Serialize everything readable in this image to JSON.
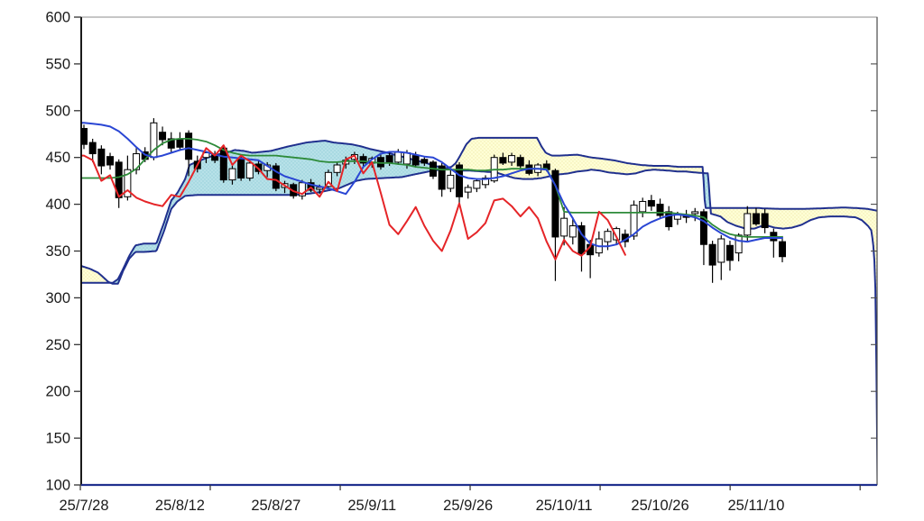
{
  "chart_data": {
    "type": "candlestick",
    "subtype": "ichimoku-cloud",
    "title": "",
    "legend": [],
    "grid": "off",
    "y_axis": {
      "min": 100,
      "max": 600,
      "tick_step": 50,
      "tick_labels": [
        "100",
        "150",
        "200",
        "250",
        "300",
        "350",
        "400",
        "450",
        "500",
        "550",
        "600"
      ]
    },
    "x_axis": {
      "labels": [
        {
          "bar": 0,
          "text": "25/7/28"
        },
        {
          "bar": 11,
          "text": "25/8/12"
        },
        {
          "bar": 22,
          "text": "25/8/27"
        },
        {
          "bar": 33,
          "text": "25/9/11"
        },
        {
          "bar": 44,
          "text": "25/9/26"
        },
        {
          "bar": 55,
          "text": "25/10/11"
        },
        {
          "bar": 66,
          "text": "25/10/26"
        },
        {
          "bar": 77,
          "text": "25/11/10"
        }
      ],
      "boundary_tick_bars": [
        -0.41,
        14.47,
        29.36,
        44.24,
        59.13,
        74.02,
        88.91
      ]
    },
    "candles": [
      [
        481,
        485,
        459,
        464
      ],
      [
        466,
        470,
        445,
        454
      ],
      [
        459,
        463,
        432,
        441
      ],
      [
        451,
        455,
        437,
        442
      ],
      [
        445,
        448,
        396,
        407
      ],
      [
        408,
        452,
        404,
        437
      ],
      [
        437,
        460,
        432,
        454
      ],
      [
        456,
        461,
        445,
        448
      ],
      [
        450,
        492,
        447,
        487
      ],
      [
        477,
        483,
        463,
        469
      ],
      [
        470,
        477,
        455,
        460
      ],
      [
        469,
        477,
        457,
        461
      ],
      [
        476,
        479,
        430,
        448
      ],
      [
        446,
        452,
        434,
        438
      ],
      [
        450,
        457,
        444,
        455
      ],
      [
        453,
        457,
        444,
        447
      ],
      [
        460,
        463,
        423,
        426
      ],
      [
        426,
        441,
        421,
        438
      ],
      [
        448,
        452,
        425,
        428
      ],
      [
        428,
        446,
        425,
        444
      ],
      [
        443,
        447,
        432,
        435
      ],
      [
        436,
        445,
        429,
        442
      ],
      [
        441,
        444,
        414,
        417
      ],
      [
        418,
        425,
        412,
        422
      ],
      [
        421,
        423,
        406,
        409
      ],
      [
        409,
        426,
        405,
        423
      ],
      [
        423,
        427,
        413,
        415
      ],
      [
        416,
        421,
        411,
        418
      ],
      [
        419,
        437,
        416,
        434
      ],
      [
        434,
        445,
        430,
        442
      ],
      [
        443,
        451,
        438,
        447
      ],
      [
        448,
        456,
        443,
        453
      ],
      [
        451,
        454,
        441,
        444
      ],
      [
        444,
        451,
        439,
        449
      ],
      [
        450,
        453,
        437,
        440
      ],
      [
        452,
        456,
        441,
        444
      ],
      [
        445,
        459,
        442,
        456
      ],
      [
        443,
        458,
        438,
        455
      ],
      [
        452,
        456,
        439,
        442
      ],
      [
        448,
        451,
        441,
        444
      ],
      [
        445,
        447,
        427,
        430
      ],
      [
        441,
        444,
        408,
        416
      ],
      [
        417,
        437,
        413,
        431
      ],
      [
        442,
        445,
        400,
        408
      ],
      [
        413,
        421,
        406,
        418
      ],
      [
        417,
        427,
        413,
        425
      ],
      [
        421,
        431,
        417,
        428
      ],
      [
        425,
        453,
        423,
        450
      ],
      [
        450,
        455,
        442,
        444
      ],
      [
        445,
        455,
        441,
        452
      ],
      [
        450,
        453,
        438,
        441
      ],
      [
        442,
        447,
        431,
        433
      ],
      [
        434,
        444,
        430,
        442
      ],
      [
        443,
        447,
        435,
        437
      ],
      [
        436,
        438,
        318,
        365
      ],
      [
        366,
        397,
        356,
        385
      ],
      [
        365,
        386,
        357,
        377
      ],
      [
        377,
        381,
        328,
        347
      ],
      [
        357,
        362,
        321,
        346
      ],
      [
        348,
        371,
        344,
        363
      ],
      [
        360,
        374,
        351,
        371
      ],
      [
        362,
        376,
        357,
        374
      ],
      [
        368,
        373,
        354,
        360
      ],
      [
        366,
        404,
        362,
        399
      ],
      [
        392,
        407,
        386,
        403
      ],
      [
        404,
        410,
        393,
        398
      ],
      [
        400,
        406,
        384,
        388
      ],
      [
        392,
        398,
        372,
        376
      ],
      [
        384,
        392,
        378,
        389
      ],
      [
        388,
        394,
        380,
        386
      ],
      [
        390,
        396,
        382,
        392
      ],
      [
        392,
        395,
        335,
        357
      ],
      [
        357,
        361,
        316,
        335
      ],
      [
        338,
        367,
        319,
        363
      ],
      [
        356,
        361,
        329,
        340
      ],
      [
        348,
        369,
        339,
        367
      ],
      [
        367,
        398,
        361,
        390
      ],
      [
        390,
        396,
        377,
        379
      ],
      [
        390,
        395,
        369,
        375
      ],
      [
        370,
        374,
        343,
        361
      ],
      [
        360,
        366,
        338,
        344
      ]
    ],
    "overlays": {
      "red_lagging_line": [
        452,
        447,
        425,
        431,
        408,
        415,
        407,
        403,
        400,
        398,
        410,
        408,
        424,
        442,
        460,
        452,
        463,
        442,
        452,
        446,
        438,
        427,
        426,
        420,
        414,
        411,
        418,
        408,
        424,
        414,
        448,
        452,
        433,
        445,
        412,
        378,
        368,
        382,
        397,
        377,
        361,
        350,
        372,
        401,
        363,
        370,
        380,
        404,
        406,
        398,
        387,
        397,
        385,
        360,
        341,
        362,
        350,
        345,
        355,
        392,
        383,
        365,
        346
      ],
      "blue_line": [
        487,
        486,
        485,
        483,
        478,
        470,
        461,
        453,
        450,
        452,
        455,
        458,
        460,
        458,
        456,
        453,
        451,
        450,
        449,
        448,
        447,
        441,
        435,
        430,
        427,
        424,
        421,
        419,
        417,
        414,
        411,
        424,
        440,
        448,
        454,
        456,
        456,
        455,
        453,
        451,
        450,
        445,
        438,
        431,
        428,
        427,
        427,
        428,
        430,
        433,
        436,
        438,
        438,
        437,
        420,
        400,
        385,
        368,
        358,
        355,
        355,
        357,
        362,
        368,
        376,
        381,
        385,
        388,
        389,
        388,
        386,
        382,
        375,
        369,
        364,
        361,
        360,
        362,
        364,
        364,
        364
      ],
      "green_line": [
        428,
        428,
        428,
        428,
        429,
        432,
        438,
        448,
        458,
        465,
        469,
        470,
        470,
        469,
        467,
        463,
        458,
        455,
        453,
        452,
        452,
        452,
        452,
        451,
        450,
        449,
        448,
        446,
        445,
        445,
        446,
        446,
        446,
        445,
        444,
        444,
        443,
        442,
        440,
        439,
        438,
        437,
        437,
        437,
        437,
        436,
        436,
        437,
        437,
        438,
        438,
        438,
        438,
        438,
        420,
        392,
        391,
        391,
        391,
        391,
        391,
        391,
        391,
        391,
        391,
        391,
        391,
        391,
        390,
        389,
        388,
        386,
        378,
        372,
        368,
        366,
        365,
        365,
        365,
        365,
        365
      ],
      "cloud_span_a": [
        [
          -0.3,
          316
        ],
        [
          2.1,
          316
        ],
        [
          3.3,
          316
        ],
        [
          3.9,
          320
        ],
        [
          4.5,
          331
        ],
        [
          5.2,
          345
        ],
        [
          5.9,
          356
        ],
        [
          6.9,
          358
        ],
        [
          8.3,
          358
        ],
        [
          9.2,
          381
        ],
        [
          10,
          404
        ],
        [
          10.7,
          412
        ],
        [
          11.6,
          427
        ],
        [
          12.1,
          442
        ],
        [
          13.1,
          446
        ],
        [
          14.2,
          450
        ],
        [
          15.2,
          453
        ],
        [
          16.3,
          455
        ],
        [
          17.3,
          458
        ],
        [
          18.3,
          457
        ],
        [
          19.3,
          455
        ],
        [
          21.4,
          457
        ],
        [
          23.5,
          462
        ],
        [
          25.5,
          466
        ],
        [
          26.5,
          467
        ],
        [
          27.6,
          468
        ],
        [
          28.6,
          466
        ],
        [
          29.7,
          465
        ],
        [
          30.7,
          464
        ],
        [
          31.7,
          462
        ],
        [
          32.8,
          459
        ],
        [
          33.8,
          457
        ],
        [
          34.8,
          455
        ],
        [
          35.9,
          452
        ],
        [
          36.9,
          450
        ],
        [
          37.9,
          447
        ],
        [
          38.9,
          445
        ],
        [
          39.9,
          442
        ],
        [
          41,
          439
        ],
        [
          41.6,
          438
        ],
        [
          42.6,
          436
        ],
        [
          44.1,
          436
        ],
        [
          45.7,
          435
        ],
        [
          47.2,
          434
        ],
        [
          48.2,
          431
        ],
        [
          49.3,
          428
        ],
        [
          50.3,
          427
        ],
        [
          51.4,
          427
        ],
        [
          52.4,
          428
        ],
        [
          53.4,
          430
        ],
        [
          54.5,
          432
        ],
        [
          55.5,
          433
        ],
        [
          56.5,
          435
        ],
        [
          57.6,
          436
        ],
        [
          58.1,
          437
        ],
        [
          59.1,
          436
        ],
        [
          60.1,
          434
        ],
        [
          61.2,
          433
        ],
        [
          62.2,
          432
        ],
        [
          63.2,
          433
        ],
        [
          64.3,
          436
        ],
        [
          65.3,
          437
        ],
        [
          66.9,
          436
        ],
        [
          68.1,
          435
        ],
        [
          68.9,
          435
        ],
        [
          70,
          434
        ],
        [
          71.5,
          433
        ],
        [
          71.8,
          390
        ],
        [
          72.9,
          387
        ],
        [
          73.7,
          381
        ],
        [
          74.7,
          377
        ],
        [
          75.8,
          374
        ],
        [
          76.8,
          374
        ],
        [
          78,
          378
        ],
        [
          79.1,
          375
        ],
        [
          80.1,
          374
        ],
        [
          81.1,
          375
        ],
        [
          82.2,
          378
        ],
        [
          83.2,
          383
        ],
        [
          84.2,
          386
        ],
        [
          85.5,
          387
        ],
        [
          87,
          387
        ],
        [
          88.4,
          386
        ],
        [
          89.1,
          383
        ],
        [
          89.8,
          377
        ],
        [
          90.2,
          372
        ],
        [
          90.5,
          350
        ],
        [
          90.7,
          300
        ],
        [
          90.9,
          105
        ]
      ],
      "cloud_span_b": [
        [
          -0.3,
          334
        ],
        [
          0.7,
          331
        ],
        [
          1.6,
          327
        ],
        [
          2.1,
          323
        ],
        [
          2.8,
          317
        ],
        [
          3.3,
          315
        ],
        [
          3.9,
          315
        ],
        [
          4.5,
          329
        ],
        [
          5.2,
          342
        ],
        [
          5.9,
          349
        ],
        [
          6.9,
          349
        ],
        [
          8.3,
          350
        ],
        [
          9.2,
          372
        ],
        [
          10,
          395
        ],
        [
          10.7,
          403
        ],
        [
          11.6,
          409
        ],
        [
          13.1,
          410
        ],
        [
          15.2,
          410
        ],
        [
          17.3,
          410
        ],
        [
          19.3,
          410
        ],
        [
          21.4,
          410
        ],
        [
          23.5,
          410
        ],
        [
          25.5,
          411
        ],
        [
          27.1,
          413
        ],
        [
          28.1,
          415
        ],
        [
          29.2,
          417
        ],
        [
          30.2,
          421
        ],
        [
          31.2,
          425
        ],
        [
          32.3,
          427
        ],
        [
          34.3,
          428
        ],
        [
          36.4,
          429
        ],
        [
          37.9,
          432
        ],
        [
          39.5,
          435
        ],
        [
          40.8,
          437
        ],
        [
          41.6,
          439
        ],
        [
          42.1,
          440
        ],
        [
          42.6,
          444
        ],
        [
          43.1,
          452
        ],
        [
          43.8,
          464
        ],
        [
          44.4,
          470
        ],
        [
          45.2,
          471
        ],
        [
          47.2,
          471
        ],
        [
          49.3,
          471
        ],
        [
          51.9,
          471
        ],
        [
          52.4,
          462
        ],
        [
          52.9,
          455
        ],
        [
          53.6,
          452
        ],
        [
          54.5,
          452
        ],
        [
          56.5,
          453
        ],
        [
          58.1,
          450
        ],
        [
          59.1,
          449
        ],
        [
          60.7,
          447
        ],
        [
          62.2,
          444
        ],
        [
          63.8,
          442
        ],
        [
          65.3,
          441
        ],
        [
          66.9,
          441
        ],
        [
          68.1,
          440
        ],
        [
          68.9,
          440
        ],
        [
          70.9,
          440
        ],
        [
          71.15,
          396
        ],
        [
          73.1,
          396
        ],
        [
          75.1,
          396
        ],
        [
          77.2,
          396
        ],
        [
          78,
          395.5
        ],
        [
          80.1,
          395
        ],
        [
          82.2,
          395
        ],
        [
          84.2,
          395.5
        ],
        [
          85.5,
          396
        ],
        [
          87,
          396.5
        ],
        [
          88.4,
          396
        ],
        [
          89.8,
          395
        ],
        [
          90.9,
          393
        ]
      ]
    },
    "colors": {
      "red_line": "#e52528",
      "blue_line": "#2a46d4",
      "green_line": "#2e8b3a",
      "cloud_border": "#20308e",
      "cloud_fill_teal": "#b7e1e8",
      "cloud_fill_teal_dot": "#93cfd9",
      "cloud_fill_yellow": "#ffffd6",
      "cloud_fill_yellow_dot": "#efe9ad",
      "candle_up_fill": "#ffffff",
      "candle_down_fill": "#000000",
      "candle_outline": "#000000",
      "axis_left": "#000000",
      "axis_bottom": "#20308e",
      "axis_frame": "#8c8c8c",
      "tick_color": "#333333",
      "label_color": "#1a1a1a"
    }
  }
}
